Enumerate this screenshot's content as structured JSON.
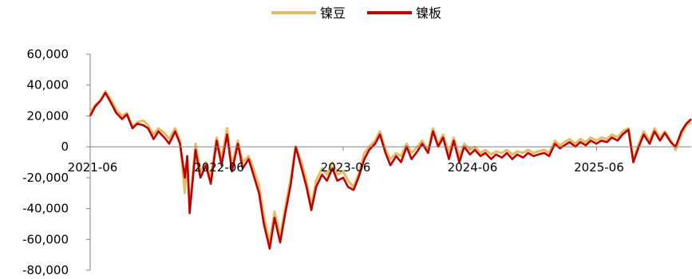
{
  "chart_data": {
    "type": "line",
    "legend_position": "top-center",
    "grid": false,
    "ylim": [
      -80000,
      60000
    ],
    "yticks": [
      {
        "value": 60000,
        "label": "60,000"
      },
      {
        "value": 40000,
        "label": "40,000"
      },
      {
        "value": 20000,
        "label": "20,000"
      },
      {
        "value": 0,
        "label": "0"
      },
      {
        "value": -20000,
        "label": "-20,000"
      },
      {
        "value": -40000,
        "label": "-40,000"
      },
      {
        "value": -60000,
        "label": "-60,000"
      },
      {
        "value": -80000,
        "label": "-80,000"
      }
    ],
    "xlim": [
      "2021-06-01",
      "2026-03-01"
    ],
    "xticks": [
      {
        "value": "2021-06-01",
        "label": "2021-06"
      },
      {
        "value": "2022-06-01",
        "label": "2022-06"
      },
      {
        "value": "2023-06-01",
        "label": "2023-06"
      },
      {
        "value": "2024-06-01",
        "label": "2024-06"
      },
      {
        "value": "2025-06-01",
        "label": "2025-06"
      }
    ],
    "series": [
      {
        "name": "镍豆",
        "color": "#E2BC66",
        "points": [
          [
            "2021-06-01",
            22000
          ],
          [
            "2021-06-15",
            27000
          ],
          [
            "2021-07-01",
            30000
          ],
          [
            "2021-07-15",
            36000
          ],
          [
            "2021-08-01",
            30000
          ],
          [
            "2021-08-15",
            24000
          ],
          [
            "2021-09-01",
            20000
          ],
          [
            "2021-09-15",
            22000
          ],
          [
            "2021-10-01",
            13000
          ],
          [
            "2021-10-15",
            16000
          ],
          [
            "2021-11-01",
            17000
          ],
          [
            "2021-11-15",
            14000
          ],
          [
            "2021-12-01",
            8000
          ],
          [
            "2021-12-15",
            12000
          ],
          [
            "2022-01-01",
            9000
          ],
          [
            "2022-01-15",
            5000
          ],
          [
            "2022-02-01",
            12000
          ],
          [
            "2022-02-15",
            4000
          ],
          [
            "2022-03-01",
            -30000
          ],
          [
            "2022-03-08",
            -8000
          ],
          [
            "2022-03-15",
            -40000
          ],
          [
            "2022-04-01",
            2000
          ],
          [
            "2022-04-15",
            -16000
          ],
          [
            "2022-05-01",
            -10000
          ],
          [
            "2022-05-15",
            -20000
          ],
          [
            "2022-06-01",
            6000
          ],
          [
            "2022-06-15",
            -8000
          ],
          [
            "2022-07-01",
            12000
          ],
          [
            "2022-07-15",
            -12000
          ],
          [
            "2022-08-01",
            4000
          ],
          [
            "2022-08-15",
            -10000
          ],
          [
            "2022-09-01",
            -6000
          ],
          [
            "2022-09-15",
            -14000
          ],
          [
            "2022-10-01",
            -25000
          ],
          [
            "2022-10-15",
            -45000
          ],
          [
            "2022-11-01",
            -62000
          ],
          [
            "2022-11-15",
            -42000
          ],
          [
            "2022-12-01",
            -58000
          ],
          [
            "2022-12-15",
            -40000
          ],
          [
            "2023-01-01",
            -20000
          ],
          [
            "2023-01-15",
            0
          ],
          [
            "2023-02-01",
            -10000
          ],
          [
            "2023-02-15",
            -22000
          ],
          [
            "2023-03-01",
            -38000
          ],
          [
            "2023-03-15",
            -22000
          ],
          [
            "2023-04-01",
            -14000
          ],
          [
            "2023-04-15",
            -18000
          ],
          [
            "2023-05-01",
            -10000
          ],
          [
            "2023-05-15",
            -18000
          ],
          [
            "2023-06-01",
            -16000
          ],
          [
            "2023-06-15",
            -22000
          ],
          [
            "2023-07-01",
            -26000
          ],
          [
            "2023-07-15",
            -18000
          ],
          [
            "2023-08-01",
            -4000
          ],
          [
            "2023-08-15",
            0
          ],
          [
            "2023-09-01",
            4000
          ],
          [
            "2023-09-15",
            10000
          ],
          [
            "2023-10-01",
            -2000
          ],
          [
            "2023-10-15",
            -8000
          ],
          [
            "2023-11-01",
            -4000
          ],
          [
            "2023-11-15",
            -6000
          ],
          [
            "2023-12-01",
            2000
          ],
          [
            "2023-12-15",
            -4000
          ],
          [
            "2024-01-01",
            0
          ],
          [
            "2024-01-15",
            4000
          ],
          [
            "2024-02-01",
            -2000
          ],
          [
            "2024-02-15",
            12000
          ],
          [
            "2024-03-01",
            2000
          ],
          [
            "2024-03-15",
            8000
          ],
          [
            "2024-04-01",
            -4000
          ],
          [
            "2024-04-15",
            6000
          ],
          [
            "2024-05-01",
            -6000
          ],
          [
            "2024-05-15",
            2000
          ],
          [
            "2024-06-01",
            -2000
          ],
          [
            "2024-06-15",
            0
          ],
          [
            "2024-07-01",
            -4000
          ],
          [
            "2024-07-15",
            -2000
          ],
          [
            "2024-08-01",
            -5000
          ],
          [
            "2024-08-15",
            -3000
          ],
          [
            "2024-09-01",
            -4000
          ],
          [
            "2024-09-15",
            -2000
          ],
          [
            "2024-10-01",
            -5000
          ],
          [
            "2024-10-15",
            -3000
          ],
          [
            "2024-11-01",
            -4000
          ],
          [
            "2024-11-15",
            -2000
          ],
          [
            "2024-12-01",
            -4000
          ],
          [
            "2024-12-15",
            -3000
          ],
          [
            "2025-01-01",
            -2000
          ],
          [
            "2025-01-15",
            -4000
          ],
          [
            "2025-02-01",
            4000
          ],
          [
            "2025-02-15",
            1000
          ],
          [
            "2025-03-01",
            3000
          ],
          [
            "2025-03-15",
            5000
          ],
          [
            "2025-04-01",
            2000
          ],
          [
            "2025-04-15",
            5000
          ],
          [
            "2025-05-01",
            3000
          ],
          [
            "2025-05-15",
            6000
          ],
          [
            "2025-06-01",
            4000
          ],
          [
            "2025-06-15",
            6000
          ],
          [
            "2025-07-01",
            5000
          ],
          [
            "2025-07-15",
            8000
          ],
          [
            "2025-08-01",
            6000
          ],
          [
            "2025-08-15",
            10000
          ],
          [
            "2025-09-01",
            12000
          ],
          [
            "2025-09-15",
            -8000
          ],
          [
            "2025-10-01",
            2000
          ],
          [
            "2025-10-15",
            10000
          ],
          [
            "2025-11-01",
            4000
          ],
          [
            "2025-11-15",
            12000
          ],
          [
            "2025-12-01",
            6000
          ],
          [
            "2025-12-15",
            10000
          ],
          [
            "2026-01-01",
            4000
          ],
          [
            "2026-01-15",
            -2000
          ],
          [
            "2026-02-01",
            8000
          ],
          [
            "2026-02-15",
            14000
          ],
          [
            "2026-03-01",
            16000
          ]
        ]
      },
      {
        "name": "镍板",
        "color": "#C00000",
        "points": [
          [
            "2021-06-01",
            20000
          ],
          [
            "2021-06-15",
            26000
          ],
          [
            "2021-07-01",
            30000
          ],
          [
            "2021-07-15",
            35000
          ],
          [
            "2021-08-01",
            28000
          ],
          [
            "2021-08-15",
            22000
          ],
          [
            "2021-09-01",
            18000
          ],
          [
            "2021-09-15",
            21000
          ],
          [
            "2021-10-01",
            12000
          ],
          [
            "2021-10-15",
            15000
          ],
          [
            "2021-11-01",
            14000
          ],
          [
            "2021-11-15",
            12000
          ],
          [
            "2021-12-01",
            5000
          ],
          [
            "2021-12-15",
            10000
          ],
          [
            "2022-01-01",
            6000
          ],
          [
            "2022-01-15",
            2000
          ],
          [
            "2022-02-01",
            10000
          ],
          [
            "2022-02-15",
            2000
          ],
          [
            "2022-03-01",
            -20000
          ],
          [
            "2022-03-08",
            -6000
          ],
          [
            "2022-03-15",
            -43000
          ],
          [
            "2022-04-01",
            -2000
          ],
          [
            "2022-04-15",
            -20000
          ],
          [
            "2022-05-01",
            -12000
          ],
          [
            "2022-05-15",
            -24000
          ],
          [
            "2022-06-01",
            4000
          ],
          [
            "2022-06-15",
            -12000
          ],
          [
            "2022-07-01",
            8000
          ],
          [
            "2022-07-15",
            -16000
          ],
          [
            "2022-08-01",
            2000
          ],
          [
            "2022-08-15",
            -14000
          ],
          [
            "2022-09-01",
            -8000
          ],
          [
            "2022-09-15",
            -18000
          ],
          [
            "2022-10-01",
            -30000
          ],
          [
            "2022-10-15",
            -50000
          ],
          [
            "2022-11-01",
            -66000
          ],
          [
            "2022-11-15",
            -46000
          ],
          [
            "2022-12-01",
            -62000
          ],
          [
            "2022-12-15",
            -44000
          ],
          [
            "2023-01-01",
            -24000
          ],
          [
            "2023-01-15",
            0
          ],
          [
            "2023-02-01",
            -14000
          ],
          [
            "2023-02-15",
            -26000
          ],
          [
            "2023-03-01",
            -41000
          ],
          [
            "2023-03-15",
            -26000
          ],
          [
            "2023-04-01",
            -18000
          ],
          [
            "2023-04-15",
            -22000
          ],
          [
            "2023-05-01",
            -14000
          ],
          [
            "2023-05-15",
            -22000
          ],
          [
            "2023-06-01",
            -20000
          ],
          [
            "2023-06-15",
            -26000
          ],
          [
            "2023-07-01",
            -28000
          ],
          [
            "2023-07-15",
            -20000
          ],
          [
            "2023-08-01",
            -8000
          ],
          [
            "2023-08-15",
            -2000
          ],
          [
            "2023-09-01",
            2000
          ],
          [
            "2023-09-15",
            8000
          ],
          [
            "2023-10-01",
            -4000
          ],
          [
            "2023-10-15",
            -12000
          ],
          [
            "2023-11-01",
            -6000
          ],
          [
            "2023-11-15",
            -10000
          ],
          [
            "2023-12-01",
            0
          ],
          [
            "2023-12-15",
            -8000
          ],
          [
            "2024-01-01",
            -3000
          ],
          [
            "2024-01-15",
            2000
          ],
          [
            "2024-02-01",
            -4000
          ],
          [
            "2024-02-15",
            10000
          ],
          [
            "2024-03-01",
            0
          ],
          [
            "2024-03-15",
            6000
          ],
          [
            "2024-04-01",
            -8000
          ],
          [
            "2024-04-15",
            4000
          ],
          [
            "2024-05-01",
            -10000
          ],
          [
            "2024-05-15",
            0
          ],
          [
            "2024-06-01",
            -5000
          ],
          [
            "2024-06-15",
            -2000
          ],
          [
            "2024-07-01",
            -6000
          ],
          [
            "2024-07-15",
            -4000
          ],
          [
            "2024-08-01",
            -8000
          ],
          [
            "2024-08-15",
            -5000
          ],
          [
            "2024-09-01",
            -7000
          ],
          [
            "2024-09-15",
            -4000
          ],
          [
            "2024-10-01",
            -8000
          ],
          [
            "2024-10-15",
            -5000
          ],
          [
            "2024-11-01",
            -7000
          ],
          [
            "2024-11-15",
            -4000
          ],
          [
            "2024-12-01",
            -6000
          ],
          [
            "2024-12-15",
            -5000
          ],
          [
            "2025-01-01",
            -4000
          ],
          [
            "2025-01-15",
            -6000
          ],
          [
            "2025-02-01",
            2000
          ],
          [
            "2025-02-15",
            -1000
          ],
          [
            "2025-03-01",
            1000
          ],
          [
            "2025-03-15",
            3000
          ],
          [
            "2025-04-01",
            0
          ],
          [
            "2025-04-15",
            3000
          ],
          [
            "2025-05-01",
            1000
          ],
          [
            "2025-05-15",
            4000
          ],
          [
            "2025-06-01",
            2000
          ],
          [
            "2025-06-15",
            4000
          ],
          [
            "2025-07-01",
            3000
          ],
          [
            "2025-07-15",
            6000
          ],
          [
            "2025-08-01",
            4000
          ],
          [
            "2025-08-15",
            8000
          ],
          [
            "2025-09-01",
            11000
          ],
          [
            "2025-09-15",
            -10000
          ],
          [
            "2025-10-01",
            0
          ],
          [
            "2025-10-15",
            8000
          ],
          [
            "2025-11-01",
            2000
          ],
          [
            "2025-11-15",
            10000
          ],
          [
            "2025-12-01",
            4000
          ],
          [
            "2025-12-15",
            9000
          ],
          [
            "2026-01-01",
            3000
          ],
          [
            "2026-01-15",
            0
          ],
          [
            "2026-02-01",
            10000
          ],
          [
            "2026-02-15",
            15000
          ],
          [
            "2026-03-01",
            18000
          ]
        ]
      }
    ]
  }
}
